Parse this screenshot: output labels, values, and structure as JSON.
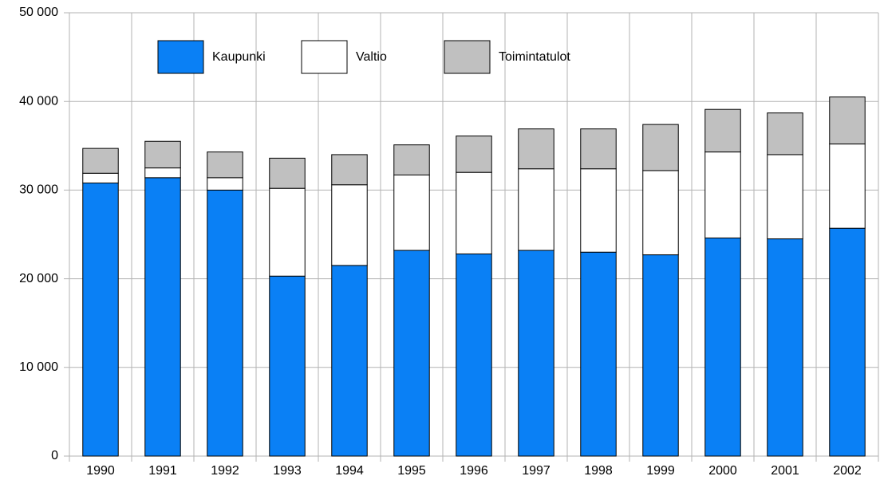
{
  "chart_data": {
    "type": "stacked_bar",
    "categories": [
      "1990",
      "1991",
      "1992",
      "1993",
      "1994",
      "1995",
      "1996",
      "1997",
      "1998",
      "1999",
      "2000",
      "2001",
      "2002"
    ],
    "series": [
      {
        "name": "Kaupunki",
        "color": "#0a80f5",
        "values": [
          30800,
          31400,
          30000,
          20300,
          21500,
          23200,
          22800,
          23200,
          23000,
          22700,
          24600,
          24500,
          25700
        ]
      },
      {
        "name": "Valtio",
        "color": "#ffffff",
        "values": [
          1100,
          1100,
          1400,
          9900,
          9100,
          8500,
          9200,
          9200,
          9400,
          9500,
          9700,
          9500,
          9500
        ]
      },
      {
        "name": "Toimintatulot",
        "color": "#c0c0c0",
        "values": [
          2800,
          3000,
          2900,
          3400,
          3400,
          3400,
          4100,
          4500,
          4500,
          5200,
          4800,
          4700,
          5300
        ]
      }
    ],
    "ylim": [
      0,
      50000
    ],
    "yticks": [
      0,
      {
        "value": 10000,
        "label": "10 000"
      },
      {
        "value": 20000,
        "label": "20 000"
      },
      {
        "value": 30000,
        "label": "30 000"
      },
      {
        "value": 40000,
        "label": "40 000"
      },
      {
        "value": 50000,
        "label": "50 000"
      }
    ],
    "grid": true
  }
}
